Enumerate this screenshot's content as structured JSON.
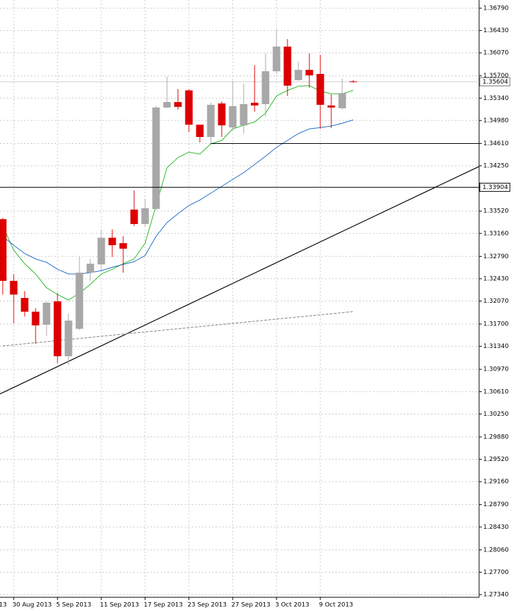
{
  "chart_data": {
    "type": "candlestick",
    "categories": [
      null,
      "30 Aug 2013",
      null,
      null,
      null,
      "5 Sep 2013",
      null,
      null,
      null,
      "11 Sep 2013",
      null,
      null,
      null,
      "17 Sep 2013",
      null,
      null,
      null,
      "23 Sep 2013",
      null,
      null,
      null,
      "27 Sep 2013",
      null,
      null,
      null,
      "3 Oct 2013",
      null,
      null,
      null,
      "9 Oct 2013",
      null,
      null,
      null
    ],
    "clipped_label": "13",
    "open": [
      1.33389,
      1.32396,
      1.3212,
      1.31899,
      1.31689,
      1.32065,
      1.31181,
      1.31623,
      1.32528,
      1.32661,
      1.33091,
      1.33003,
      1.33544,
      1.33312,
      1.33555,
      1.35189,
      1.35277,
      1.35465,
      1.34913,
      1.34714,
      1.35255,
      1.34868,
      1.34902,
      1.35266,
      1.35244,
      1.35774,
      1.36171,
      1.3563,
      1.35796,
      1.3573,
      1.35222,
      1.35178,
      1.3561
    ],
    "high": [
      1.33411,
      1.32506,
      1.3223,
      1.31954,
      1.32065,
      1.32197,
      1.31866,
      1.32782,
      1.32749,
      1.33224,
      1.33224,
      1.33113,
      1.33853,
      1.3372,
      1.35211,
      1.35686,
      1.35487,
      1.35487,
      1.34913,
      1.35266,
      1.35288,
      1.35619,
      1.35575,
      1.35873,
      1.36061,
      1.36447,
      1.36293,
      1.35928,
      1.36061,
      1.36039,
      1.35398,
      1.35652,
      1.3563
    ],
    "low": [
      1.32175,
      1.31711,
      1.31822,
      1.3138,
      1.31512,
      1.31071,
      1.31038,
      1.31601,
      1.32396,
      1.32561,
      1.32782,
      1.32528,
      1.33279,
      1.33279,
      1.33533,
      1.35178,
      1.35156,
      1.34791,
      1.34626,
      1.34604,
      1.34714,
      1.34824,
      1.34769,
      1.35123,
      1.35045,
      1.3573,
      1.35376,
      1.35619,
      1.35509,
      1.34846,
      1.34857,
      1.35156,
      1.3559
    ],
    "close": [
      1.32396,
      1.32175,
      1.31899,
      1.31678,
      1.32043,
      1.31181,
      1.31755,
      1.32528,
      1.32672,
      1.33091,
      1.3297,
      1.32914,
      1.33312,
      1.33566,
      1.35189,
      1.35277,
      1.352,
      1.34913,
      1.34714,
      1.35233,
      1.34902,
      1.35211,
      1.35244,
      1.35222,
      1.35774,
      1.36171,
      1.35542,
      1.35796,
      1.35708,
      1.35233,
      1.35189,
      1.35421,
      1.35604
    ],
    "up_color": "#a8a8a8",
    "down_color": "#dd0000",
    "lines": [
      {
        "color": "#2db92d",
        "values": [
          1.33279,
          1.32892,
          1.32672,
          1.32506,
          1.32285,
          1.32175,
          1.32087,
          1.32197,
          1.3234,
          1.32506,
          1.32583,
          1.32672,
          1.32749,
          1.33003,
          1.3361,
          1.34217,
          1.34383,
          1.34471,
          1.34438,
          1.34604,
          1.34659,
          1.34846,
          1.34902,
          1.34957,
          1.351,
          1.35376,
          1.35465,
          1.35531,
          1.35542,
          1.35454,
          1.3541,
          1.3541,
          1.35465
        ]
      },
      {
        "color": "#1f6fc5",
        "values": [
          1.33113,
          1.3297,
          1.32837,
          1.32749,
          1.32694,
          1.32583,
          1.32506,
          1.32506,
          1.32528,
          1.32561,
          1.32616,
          1.32661,
          1.32705,
          1.32804,
          1.33113,
          1.33334,
          1.33478,
          1.3361,
          1.33698,
          1.33809,
          1.33919,
          1.3403,
          1.3414,
          1.34272,
          1.34405,
          1.34548,
          1.34659,
          1.34769,
          1.34846,
          1.34867,
          1.34891,
          1.34935,
          1.3499
        ]
      },
      {
        "color": "#808080",
        "dashed": true,
        "values": [
          1.31347,
          1.31364,
          1.31382,
          1.31399,
          1.31416,
          1.31434,
          1.31451,
          1.31468,
          1.31485,
          1.31503,
          1.3152,
          1.31537,
          1.31555,
          1.31572,
          1.31589,
          1.31607,
          1.31624,
          1.31641,
          1.31658,
          1.31676,
          1.31693,
          1.3171,
          1.31728,
          1.31745,
          1.31762,
          1.3178,
          1.31797,
          1.31814,
          1.31831,
          1.31849,
          1.31866,
          1.31883,
          1.31901
        ]
      }
    ],
    "trendlines": [
      {
        "x": [
          -0.25,
          43.5
        ],
        "values": [
          1.30574,
          1.34239
        ]
      }
    ],
    "hlines": [
      {
        "value": 1.33904
      },
      {
        "value": 1.3461,
        "from_index": 19
      }
    ],
    "current_price": 1.35604,
    "xlim": [
      -0.25,
      43.5
    ],
    "ylim": [
      1.27296,
      1.36922
    ],
    "yticks": [
      {
        "value": 1.3679,
        "label": "1.36790"
      },
      {
        "value": 1.3643,
        "label": "1.36430"
      },
      {
        "value": 1.3607,
        "label": "1.36070"
      },
      {
        "value": 1.357,
        "label": "1.35700"
      },
      {
        "value": 1.3534,
        "label": "1.35340"
      },
      {
        "value": 1.3498,
        "label": "1.34980"
      },
      {
        "value": 1.3461,
        "label": "1.34610"
      },
      {
        "value": 1.3425,
        "label": "1.34250"
      },
      {
        "value": 1.3352,
        "label": "1.33520"
      },
      {
        "value": 1.3316,
        "label": "1.33160"
      },
      {
        "value": 1.3279,
        "label": "1.32790"
      },
      {
        "value": 1.3243,
        "label": "1.32430"
      },
      {
        "value": 1.3207,
        "label": "1.32070"
      },
      {
        "value": 1.317,
        "label": "1.31700"
      },
      {
        "value": 1.3134,
        "label": "1.31340"
      },
      {
        "value": 1.3097,
        "label": "1.30970"
      },
      {
        "value": 1.3061,
        "label": "1.30610"
      },
      {
        "value": 1.3025,
        "label": "1.30250"
      },
      {
        "value": 1.2988,
        "label": "1.29880"
      },
      {
        "value": 1.2952,
        "label": "1.29520"
      },
      {
        "value": 1.2916,
        "label": "1.29160"
      },
      {
        "value": 1.2879,
        "label": "1.28790"
      },
      {
        "value": 1.2843,
        "label": "1.28430"
      },
      {
        "value": 1.2806,
        "label": "1.28060"
      },
      {
        "value": 1.277,
        "label": "1.27700"
      },
      {
        "value": 1.2734,
        "label": "1.27340"
      }
    ],
    "grid": true
  }
}
